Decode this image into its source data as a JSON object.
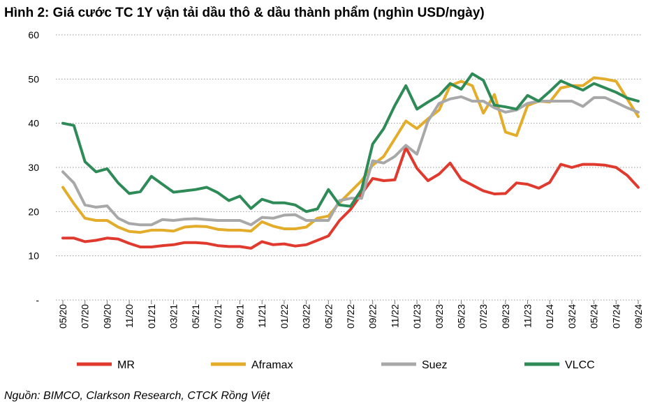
{
  "title": "Hình 2: Giá cước TC 1Y vận tải dầu thô & dầu thành phẩm (nghìn USD/ngày)",
  "source": "Nguồn: BIMCO, Clarkson Research, CTCK Rồng Việt",
  "chart_data": {
    "type": "line",
    "title": "Hình 2: Giá cước TC 1Y vận tải dầu thô & dầu thành phẩm (nghìn USD/ngày)",
    "xlabel": "",
    "ylabel": "",
    "ylim": [
      0,
      60
    ],
    "yticks": [
      "-",
      "10",
      "20",
      "30",
      "40",
      "50",
      "60"
    ],
    "grid": true,
    "legend": "bottom",
    "x_tick_labels": [
      "05/20",
      "07/20",
      "09/20",
      "11/20",
      "01/21",
      "03/21",
      "05/21",
      "07/21",
      "09/21",
      "11/21",
      "01/22",
      "03/22",
      "05/22",
      "07/22",
      "09/22",
      "11/22",
      "01/23",
      "03/23",
      "05/23",
      "07/23",
      "09/23",
      "11/23",
      "01/24",
      "03/24",
      "05/24",
      "07/24",
      "09/24"
    ],
    "x": [
      "05/20",
      "06/20",
      "07/20",
      "08/20",
      "09/20",
      "10/20",
      "11/20",
      "12/20",
      "01/21",
      "02/21",
      "03/21",
      "04/21",
      "05/21",
      "06/21",
      "07/21",
      "08/21",
      "09/21",
      "10/21",
      "11/21",
      "12/21",
      "01/22",
      "02/22",
      "03/22",
      "04/22",
      "05/22",
      "06/22",
      "07/22",
      "08/22",
      "09/22",
      "10/22",
      "11/22",
      "12/22",
      "01/23",
      "02/23",
      "03/23",
      "04/23",
      "05/23",
      "06/23",
      "07/23",
      "08/23",
      "09/23",
      "10/23",
      "11/23",
      "12/23",
      "01/24",
      "02/24",
      "03/24",
      "04/24",
      "05/24",
      "06/24",
      "07/24",
      "08/24",
      "09/24"
    ],
    "series": [
      {
        "name": "MR",
        "color": "#e03a2f",
        "values": [
          14,
          14,
          13.2,
          13.5,
          14,
          13.8,
          12.8,
          12,
          12,
          12.3,
          12.5,
          13,
          13,
          12.8,
          12.3,
          12.1,
          12.1,
          11.7,
          13.2,
          12.5,
          12.7,
          12.2,
          12.5,
          13.5,
          14.5,
          18,
          20.5,
          24,
          27.5,
          27,
          27.2,
          34.5,
          29.8,
          27,
          28.5,
          31,
          27.3,
          26,
          24.7,
          24,
          24.1,
          26.5,
          26.2,
          25.3,
          26.6,
          30.7,
          30,
          30.7,
          30.7,
          30.5,
          30,
          28.2,
          25.5
        ]
      },
      {
        "name": "Aframax",
        "color": "#e3ad2b",
        "values": [
          25.5,
          21.8,
          18.5,
          18,
          18,
          16.5,
          15.5,
          15.3,
          15.8,
          15.8,
          15.6,
          16.5,
          16.7,
          16.6,
          16,
          15.8,
          15.8,
          15.6,
          17.7,
          16.7,
          16.1,
          16.1,
          16.5,
          18.5,
          19,
          22,
          24.5,
          27,
          30.5,
          32.5,
          36.5,
          40.5,
          38.8,
          41,
          43,
          48.5,
          49.5,
          48.5,
          42.3,
          46.5,
          38,
          37.2,
          44,
          45,
          44.8,
          48,
          48.5,
          48.5,
          50.3,
          50,
          49.5,
          45.5,
          41.5
        ]
      },
      {
        "name": "Suez",
        "color": "#a8a8a8",
        "values": [
          29,
          26.5,
          21.5,
          21,
          21.3,
          18.5,
          17.3,
          17,
          17,
          18.2,
          18,
          18.3,
          18.4,
          18.2,
          18,
          18,
          18,
          17,
          18.7,
          18.5,
          19.2,
          19.3,
          18,
          18,
          18,
          22.5,
          23,
          23,
          31.5,
          31,
          32.5,
          35,
          33,
          40.5,
          44.5,
          45.5,
          46,
          45,
          45,
          43.5,
          42.5,
          43,
          44.5,
          45,
          45,
          45,
          45,
          43.8,
          45.8,
          45.8,
          44.7,
          43.5,
          42.5
        ]
      },
      {
        "name": "VLCC",
        "color": "#2e8b57",
        "values": [
          40,
          39.5,
          31.3,
          29,
          29.7,
          26.5,
          24.1,
          24.5,
          28,
          26.2,
          24.4,
          24.7,
          25,
          25.5,
          24.3,
          22.5,
          23.5,
          20.7,
          22.8,
          22,
          22,
          21.5,
          20,
          20.6,
          25,
          21.5,
          21.2,
          25,
          35.3,
          38.8,
          44,
          48.5,
          43.2,
          44.8,
          46.3,
          49,
          47.7,
          51.2,
          49.7,
          44.1,
          43.7,
          43.2,
          46.3,
          45,
          47.2,
          49.6,
          48.5,
          47.5,
          49,
          48,
          47,
          45.7,
          45
        ]
      }
    ]
  }
}
